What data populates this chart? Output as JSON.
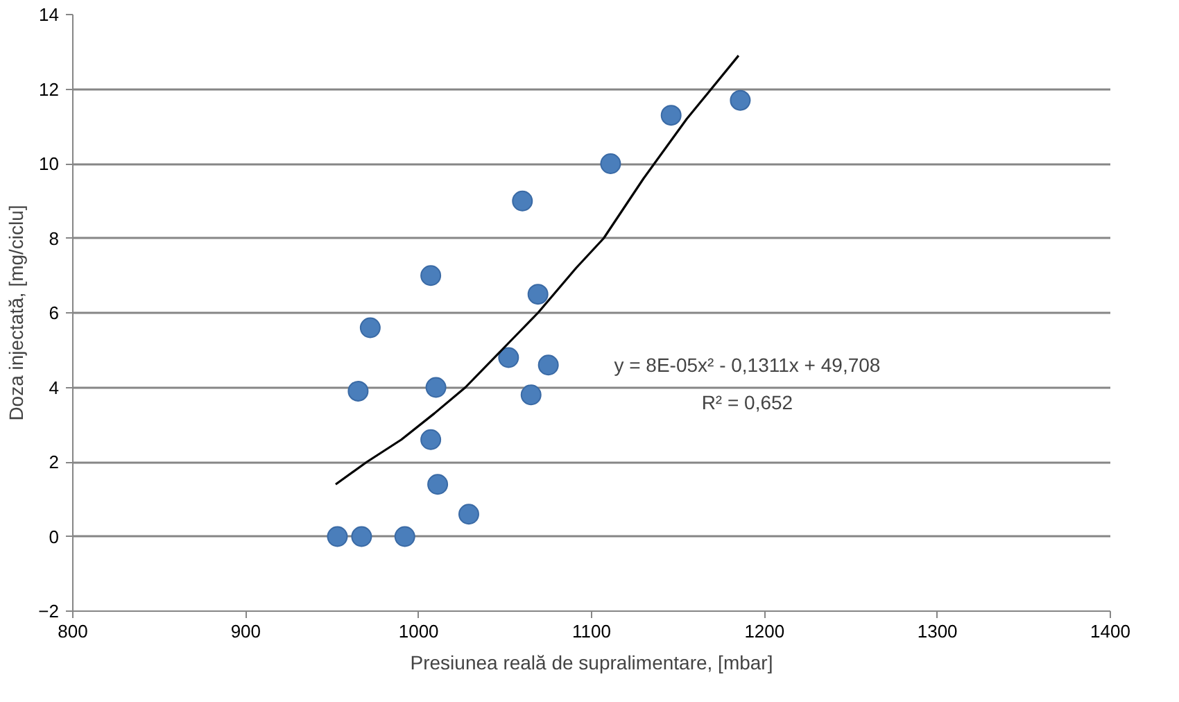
{
  "chart_data": {
    "type": "scatter",
    "xlabel": "Presiunea reală de supralimentare, [mbar]",
    "ylabel": "Doza injectată, [mg/ciclu]",
    "x": [
      953,
      967,
      992,
      1029,
      1011,
      1007,
      965,
      1010,
      972,
      1007,
      1052,
      1065,
      1075,
      1069,
      1060,
      1111,
      1146,
      1186
    ],
    "series": [
      {
        "color": "#4a7ebb",
        "marker": "circle",
        "values": [
          0,
          0,
          0,
          0.6,
          1.4,
          2.6,
          3.9,
          4.0,
          5.6,
          7.0,
          4.8,
          3.8,
          4.6,
          6.5,
          9.0,
          10.0,
          11.3,
          11.7
        ]
      },
      {
        "type": "line",
        "color": "#000000",
        "x": [
          952,
          970,
          990,
          1009,
          1027,
          1048,
          1069,
          1091,
          1107,
          1130,
          1155,
          1185
        ],
        "values": [
          1.4,
          2.0,
          2.6,
          3.3,
          4.0,
          5.0,
          6.0,
          7.2,
          8.0,
          9.6,
          11.2,
          12.9
        ]
      }
    ],
    "annotations": [
      "y = 8E-05x² - 0,1311x + 49,708",
      "R² = 0,652"
    ],
    "xlim": [
      800,
      1400
    ],
    "xticks": [
      800,
      900,
      1000,
      1100,
      1200,
      1300,
      1400
    ],
    "ylim": [
      -2,
      14
    ],
    "yticks": [
      -2,
      0,
      2,
      4,
      6,
      8,
      10,
      12,
      14
    ],
    "grid": "y"
  }
}
